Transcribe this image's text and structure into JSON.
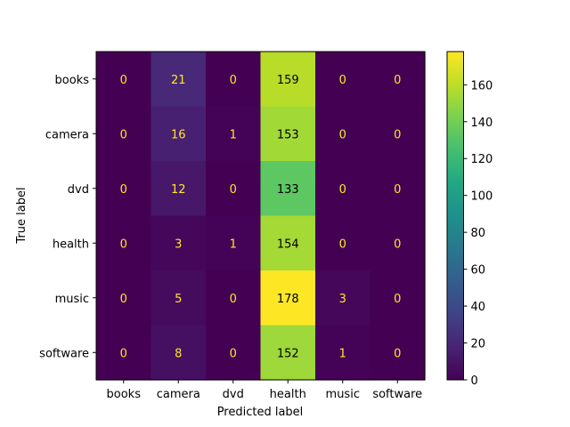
{
  "chart_data": {
    "type": "heatmap",
    "title": "",
    "xlabel": "Predicted label",
    "ylabel": "True label",
    "x_categories": [
      "books",
      "camera",
      "dvd",
      "health",
      "music",
      "software"
    ],
    "y_categories": [
      "books",
      "camera",
      "dvd",
      "health",
      "music",
      "software"
    ],
    "values": [
      [
        0,
        21,
        0,
        159,
        0,
        0
      ],
      [
        0,
        16,
        1,
        153,
        0,
        0
      ],
      [
        0,
        12,
        0,
        133,
        0,
        0
      ],
      [
        0,
        3,
        1,
        154,
        0,
        0
      ],
      [
        0,
        5,
        0,
        178,
        3,
        0
      ],
      [
        0,
        8,
        0,
        152,
        1,
        0
      ]
    ],
    "colormap": "viridis",
    "colorbar": {
      "range": [
        0,
        178
      ],
      "ticks": [
        0,
        20,
        40,
        60,
        80,
        100,
        120,
        140,
        160
      ],
      "tick_labels": [
        "0",
        "20",
        "40",
        "60",
        "80",
        "100",
        "120",
        "140",
        "160"
      ]
    },
    "text_colors": {
      "light": "#fde725",
      "dark": "#000000"
    },
    "grid": false
  }
}
